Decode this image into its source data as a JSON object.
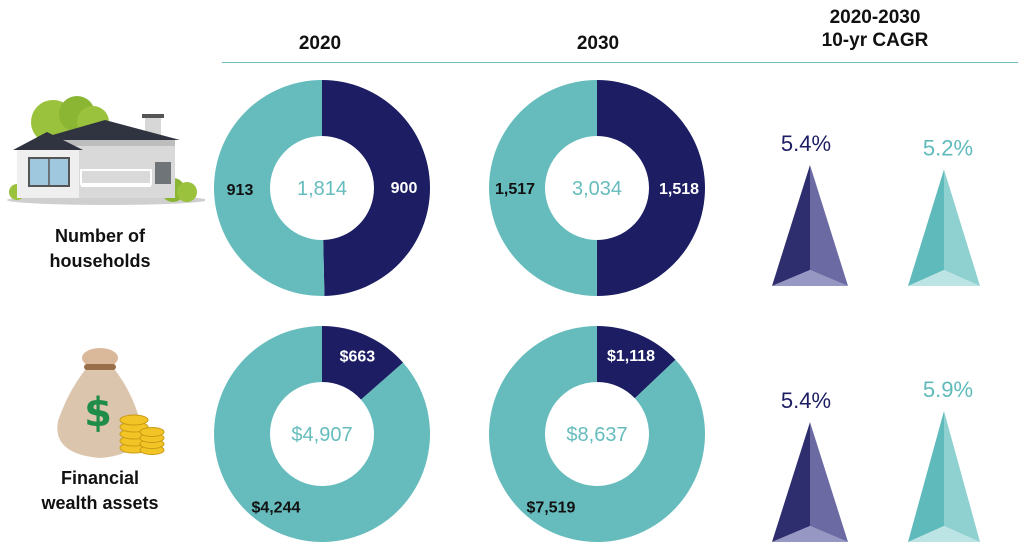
{
  "headers": {
    "col1": "2020",
    "col2": "2030",
    "col3_line1": "2020-2030",
    "col3_line2": "10-yr CAGR"
  },
  "colors": {
    "dark": "#1c1d63",
    "teal": "#66bcbd",
    "dark_pyramid": "#2e2e6e",
    "teal_pyramid": "#5fbabb"
  },
  "rows": [
    {
      "label_line1": "Number of",
      "label_line2": "households",
      "icon": "house-icon"
    },
    {
      "label_line1": "Financial",
      "label_line2": "wealth assets",
      "icon": "money-bag-icon"
    }
  ],
  "chart_data": [
    {
      "type": "pie",
      "subtype": "donut",
      "column": "2020",
      "row": "Number of households",
      "total_label": "1,814",
      "slices": [
        {
          "value": 900,
          "label": "900",
          "color": "#1c1d63"
        },
        {
          "value": 913,
          "label": "913",
          "color": "#66bcbd"
        }
      ]
    },
    {
      "type": "pie",
      "subtype": "donut",
      "column": "2030",
      "row": "Number of households",
      "total_label": "3,034",
      "slices": [
        {
          "value": 1518,
          "label": "1,518",
          "color": "#1c1d63"
        },
        {
          "value": 1517,
          "label": "1,517",
          "color": "#66bcbd"
        }
      ]
    },
    {
      "type": "pie",
      "subtype": "donut",
      "column": "2020",
      "row": "Financial wealth assets",
      "total_label": "$4,907",
      "slices": [
        {
          "value": 663,
          "label": "$663",
          "color": "#1c1d63"
        },
        {
          "value": 4244,
          "label": "$4,244",
          "color": "#66bcbd"
        }
      ]
    },
    {
      "type": "pie",
      "subtype": "donut",
      "column": "2030",
      "row": "Financial wealth assets",
      "total_label": "$8,637",
      "slices": [
        {
          "value": 1118,
          "label": "$1,118",
          "color": "#1c1d63"
        },
        {
          "value": 7519,
          "label": "$7,519",
          "color": "#66bcbd"
        }
      ]
    },
    {
      "type": "bar",
      "subtype": "pyramid",
      "column": "2020-2030 10-yr CAGR",
      "row": "Number of households",
      "categories": [
        "dark",
        "teal"
      ],
      "values": [
        5.4,
        5.2
      ],
      "labels": [
        "5.4%",
        "5.2%"
      ]
    },
    {
      "type": "bar",
      "subtype": "pyramid",
      "column": "2020-2030 10-yr CAGR",
      "row": "Financial wealth assets",
      "categories": [
        "dark",
        "teal"
      ],
      "values": [
        5.4,
        5.9
      ],
      "labels": [
        "5.4%",
        "5.9%"
      ]
    }
  ]
}
